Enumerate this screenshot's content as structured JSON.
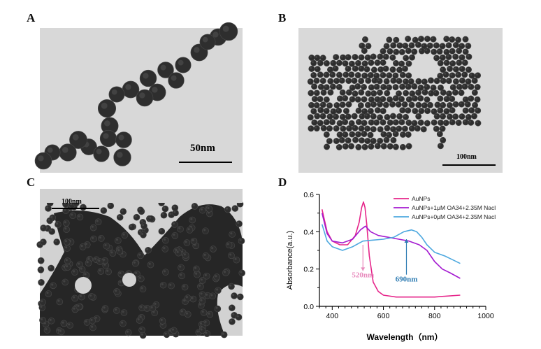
{
  "panels": {
    "a": {
      "letter": "A",
      "scale_label": "50nm"
    },
    "b": {
      "letter": "B",
      "scale_label": "100nm"
    },
    "c": {
      "letter": "C",
      "scale_label": "100nm"
    },
    "d": {
      "letter": "D"
    }
  },
  "colors": {
    "tem_background_a": "#d8d8d8",
    "tem_background_b": "#d9d9d9",
    "tem_background_c": "#d2d2d2",
    "particle": "#2e2e2e",
    "series_aunps": "#e6258a",
    "series_1um": "#a41ad0",
    "series_0um": "#4da8df",
    "annot_520": "#e88bbd",
    "annot_690": "#2e7cb3"
  },
  "chart_data": {
    "type": "line",
    "xlabel": "Wavelength（nm）",
    "ylabel": "Absorbance(a.u.)",
    "xlim": [
      350,
      1000
    ],
    "ylim": [
      0,
      0.6
    ],
    "xticks": [
      "400",
      "600",
      "800",
      "1000"
    ],
    "yticks": [
      "0.0",
      "0.2",
      "0.4",
      "0.6"
    ],
    "xtick_values": [
      400,
      600,
      800,
      1000
    ],
    "ytick_values": [
      0,
      0.2,
      0.4,
      0.6
    ],
    "legend_position": "top-right",
    "series": [
      {
        "name": "AuNPs",
        "color": "#e6258a",
        "x": [
          360,
          380,
          400,
          430,
          460,
          490,
          505,
          515,
          522,
          528,
          535,
          545,
          560,
          580,
          600,
          650,
          700,
          750,
          800,
          850,
          900
        ],
        "y": [
          0.52,
          0.4,
          0.35,
          0.33,
          0.33,
          0.38,
          0.45,
          0.53,
          0.56,
          0.53,
          0.44,
          0.27,
          0.13,
          0.08,
          0.06,
          0.05,
          0.05,
          0.05,
          0.05,
          0.055,
          0.06
        ]
      },
      {
        "name": "AuNPs+1μM OA34+2.35M Nacl",
        "color": "#a41ad0",
        "x": [
          360,
          380,
          400,
          440,
          480,
          510,
          530,
          550,
          580,
          620,
          660,
          700,
          740,
          770,
          800,
          830,
          860,
          900
        ],
        "y": [
          0.5,
          0.39,
          0.35,
          0.34,
          0.36,
          0.41,
          0.43,
          0.4,
          0.38,
          0.37,
          0.36,
          0.35,
          0.33,
          0.3,
          0.24,
          0.2,
          0.18,
          0.15
        ]
      },
      {
        "name": "AuNPs+0μM OA34+2.35M Nacl",
        "color": "#4da8df",
        "x": [
          360,
          380,
          400,
          440,
          480,
          520,
          560,
          600,
          640,
          680,
          710,
          730,
          750,
          770,
          800,
          840,
          870,
          900
        ],
        "y": [
          0.44,
          0.35,
          0.32,
          0.3,
          0.32,
          0.35,
          0.355,
          0.36,
          0.37,
          0.4,
          0.41,
          0.4,
          0.37,
          0.33,
          0.29,
          0.27,
          0.25,
          0.23
        ]
      }
    ],
    "annotations": [
      {
        "text": "520nm",
        "color": "#e88bbd",
        "x": 520,
        "y_from": 0.33,
        "y_to": 0.19
      },
      {
        "text": "690nm",
        "color": "#2e7cb3",
        "x": 690,
        "y_from": 0.17,
        "y_to": 0.36
      }
    ]
  }
}
